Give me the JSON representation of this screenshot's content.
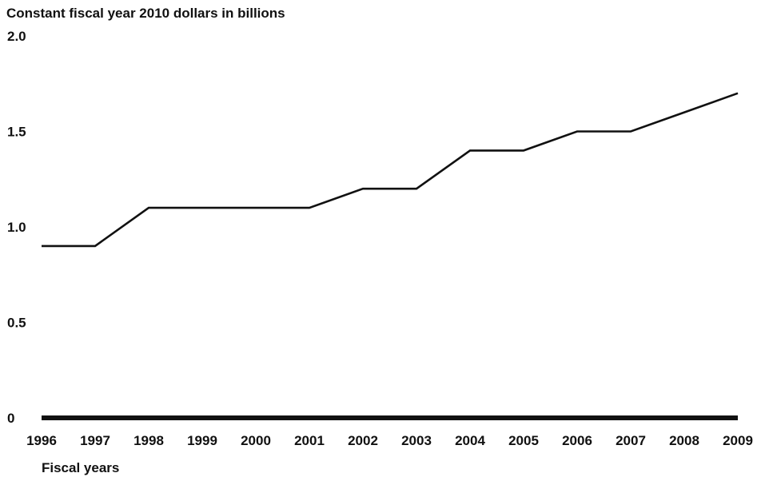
{
  "chart_data": {
    "type": "line",
    "title": "",
    "ylabel": "Constant fiscal year 2010 dollars in billions",
    "xlabel": "Fiscal years",
    "x": [
      "1996",
      "1997",
      "1998",
      "1999",
      "2000",
      "2001",
      "2002",
      "2003",
      "2004",
      "2005",
      "2006",
      "2007",
      "2008",
      "2009"
    ],
    "values": [
      0.9,
      0.9,
      1.1,
      1.1,
      1.1,
      1.1,
      1.2,
      1.2,
      1.4,
      1.4,
      1.5,
      1.5,
      1.6,
      1.7
    ],
    "ylim": [
      0,
      2.0
    ],
    "yticks": [
      "0",
      "0.5",
      "1.0",
      "1.5",
      "2.0"
    ],
    "ytick_values": [
      0,
      0.5,
      1.0,
      1.5,
      2.0
    ],
    "grid": false,
    "line_color": "#111111"
  }
}
